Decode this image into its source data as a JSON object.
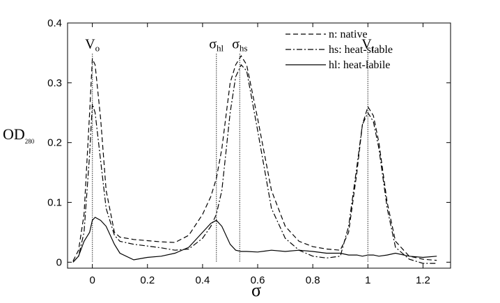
{
  "chart_data": {
    "type": "line",
    "x_label": "σ",
    "y_label": "OD",
    "y_label_sub": "280",
    "xlim": [
      -0.09,
      1.3
    ],
    "ylim": [
      -0.01,
      0.4
    ],
    "xticks": [
      0,
      0.2,
      0.4,
      0.6,
      0.8,
      1,
      1.2
    ],
    "yticks": [
      0,
      0.1,
      0.2,
      0.3,
      0.4
    ],
    "legend": "upper right",
    "x": [
      -0.07,
      -0.05,
      -0.03,
      -0.01,
      0,
      0.01,
      0.03,
      0.05,
      0.08,
      0.1,
      0.15,
      0.2,
      0.25,
      0.3,
      0.35,
      0.4,
      0.43,
      0.45,
      0.47,
      0.5,
      0.52,
      0.54,
      0.56,
      0.6,
      0.65,
      0.7,
      0.75,
      0.8,
      0.85,
      0.9,
      0.93,
      0.96,
      0.98,
      1.0,
      1.02,
      1.04,
      1.07,
      1.1,
      1.15,
      1.2,
      1.25
    ],
    "series": [
      {
        "name": "n: native",
        "color": "#000000",
        "dash": "7,4",
        "values": [
          0.002,
          0.02,
          0.08,
          0.25,
          0.34,
          0.33,
          0.24,
          0.12,
          0.05,
          0.042,
          0.038,
          0.036,
          0.034,
          0.033,
          0.045,
          0.08,
          0.11,
          0.14,
          0.19,
          0.3,
          0.33,
          0.345,
          0.33,
          0.24,
          0.12,
          0.06,
          0.035,
          0.026,
          0.022,
          0.02,
          0.05,
          0.15,
          0.23,
          0.26,
          0.245,
          0.2,
          0.1,
          0.035,
          0.01,
          0.005,
          0.003
        ]
      },
      {
        "name": "hs: heat-stable",
        "color": "#000000",
        "dash": "8,3,2,3",
        "values": [
          0,
          0.01,
          0.05,
          0.18,
          0.265,
          0.25,
          0.17,
          0.09,
          0.045,
          0.035,
          0.03,
          0.027,
          0.024,
          0.02,
          0.022,
          0.04,
          0.06,
          0.08,
          0.12,
          0.25,
          0.31,
          0.33,
          0.32,
          0.22,
          0.09,
          0.04,
          0.02,
          0.01,
          0.007,
          0.01,
          0.06,
          0.16,
          0.23,
          0.25,
          0.235,
          0.19,
          0.09,
          0.025,
          0.005,
          -0.002,
          -0.002
        ]
      },
      {
        "name": "hl: heat-labile",
        "color": "#000000",
        "dash": "none",
        "values": [
          0,
          0.01,
          0.035,
          0.05,
          0.07,
          0.075,
          0.07,
          0.06,
          0.03,
          0.015,
          0.004,
          0.008,
          0.01,
          0.015,
          0.025,
          0.05,
          0.065,
          0.07,
          0.06,
          0.03,
          0.02,
          0.018,
          0.018,
          0.017,
          0.02,
          0.018,
          0.02,
          0.018,
          0.015,
          0.015,
          0.012,
          0.012,
          0.01,
          0.012,
          0.012,
          0.01,
          0.012,
          0.015,
          0.01,
          0.008,
          0.01
        ]
      }
    ],
    "markers": [
      {
        "text": "V",
        "sub": "o",
        "x": 0
      },
      {
        "text": "σ",
        "sub": "hl",
        "x": 0.45
      },
      {
        "text": "σ",
        "sub": "hs",
        "x": 0.535
      },
      {
        "text": "V",
        "sub": "t",
        "x": 1.0
      }
    ]
  }
}
